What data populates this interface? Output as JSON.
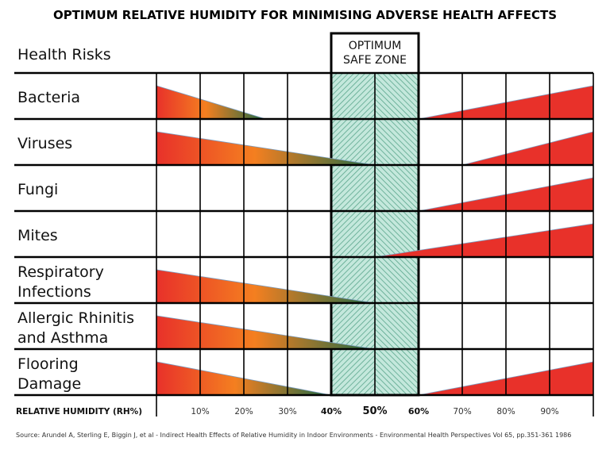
{
  "title": "OPTIMUM RELATIVE HUMIDITY FOR MINIMISING ADVERSE HEALTH AFFECTS",
  "header_label": "Health Risks",
  "zone_label": [
    "OPTIMUM",
    "SAFE ZONE"
  ],
  "zone_range": [
    40,
    60
  ],
  "axis_label": "RELATIVE HUMIDITY (RH%)",
  "ticks": [
    {
      "value": 10,
      "label": "10%",
      "bold": false
    },
    {
      "value": 20,
      "label": "20%",
      "bold": false
    },
    {
      "value": 30,
      "label": "30%",
      "bold": false
    },
    {
      "value": 40,
      "label": "40%",
      "bold": true
    },
    {
      "value": 50,
      "label": "50%",
      "bold": true
    },
    {
      "value": 60,
      "label": "60%",
      "bold": true
    },
    {
      "value": 70,
      "label": "70%",
      "bold": false
    },
    {
      "value": 80,
      "label": "80%",
      "bold": false
    },
    {
      "value": 90,
      "label": "90%",
      "bold": false
    }
  ],
  "rows": [
    {
      "label": [
        "Bacteria"
      ],
      "low_risk_until": 25,
      "high_risk_from": 60
    },
    {
      "label": [
        "Viruses"
      ],
      "low_risk_until": 50,
      "high_risk_from": 70
    },
    {
      "label": [
        "Fungi"
      ],
      "low_risk_until": null,
      "high_risk_from": 60
    },
    {
      "label": [
        "Mites"
      ],
      "low_risk_until": null,
      "high_risk_from": 50
    },
    {
      "label": [
        "Respiratory",
        "Infections"
      ],
      "low_risk_until": 50,
      "high_risk_from": null
    },
    {
      "label": [
        "Allergic Rhinitis",
        "and Asthma"
      ],
      "low_risk_until": 50,
      "high_risk_from": null
    },
    {
      "label": [
        "Flooring",
        "Damage"
      ],
      "low_risk_until": 40,
      "high_risk_from": 60
    }
  ],
  "colors": {
    "high_risk": "#e8312a",
    "mid_risk": "#f47f20",
    "low_risk": "#1e6b45",
    "zone_fill": "#c4e8dc",
    "zone_hatch": "#5aa58c"
  },
  "source": "Source: Arundel A, Sterling E, Biggin J, et al - Indirect Health Effects of Relative Humidity in Indoor Environments - Environmental Health Perspectives Vol 65, pp.351-361 1986"
}
